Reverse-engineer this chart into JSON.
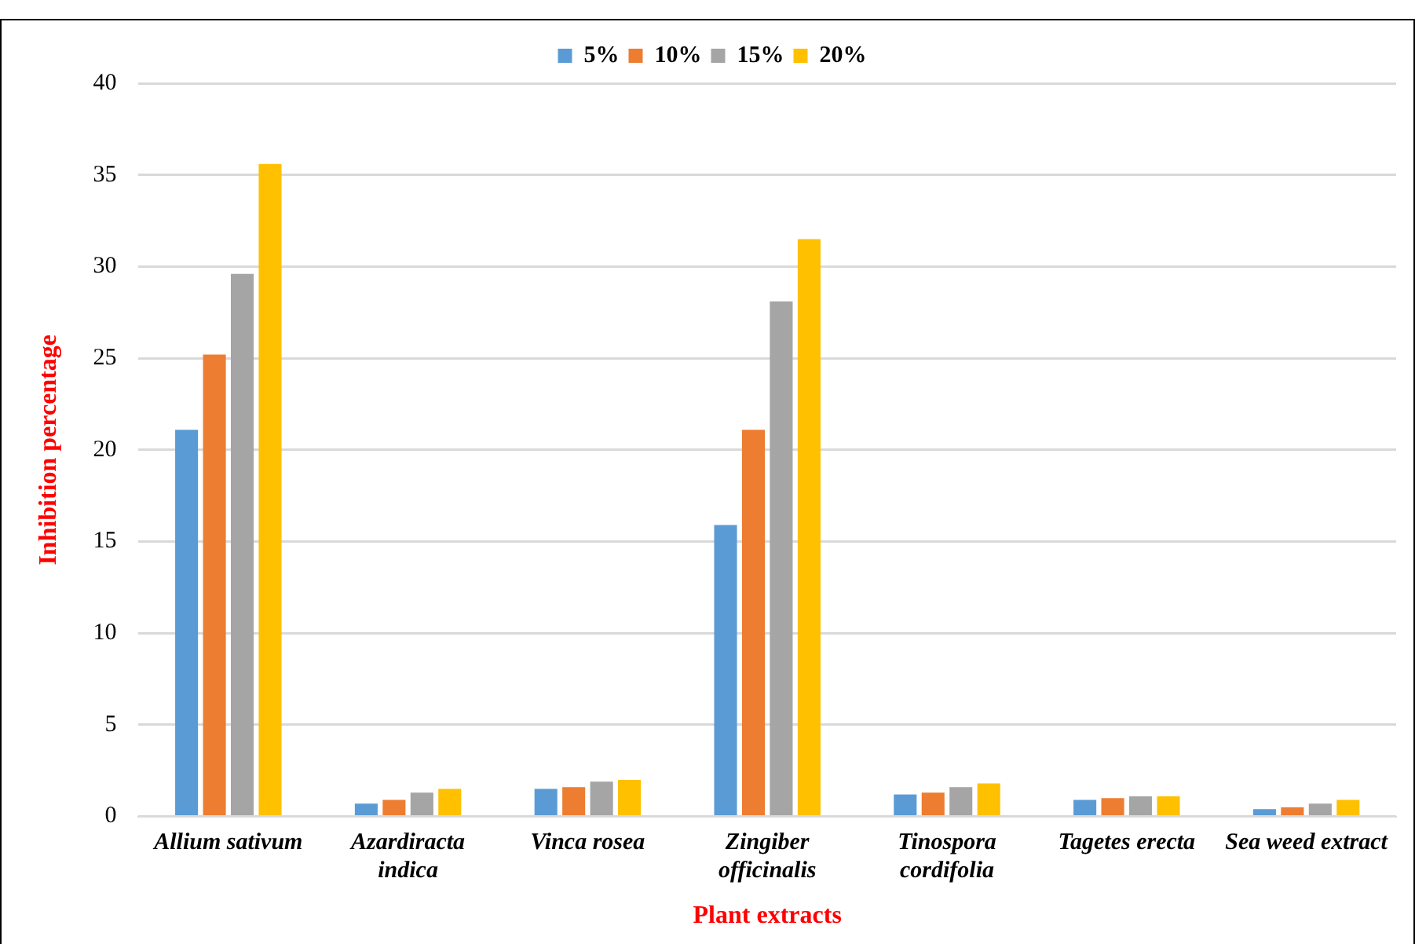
{
  "chart_data": {
    "type": "bar",
    "xlabel": "Plant extracts",
    "ylabel": "Inhibition percentage",
    "categories": [
      "Allium sativum",
      "Azardiracta indica",
      "Vinca rosea",
      "Zingiber officinalis",
      "Tinospora cordifolia",
      "Tagetes erecta",
      "Sea weed extract"
    ],
    "series": [
      {
        "name": "5%",
        "color": "#5b9bd5",
        "values": [
          21.1,
          0.7,
          1.5,
          15.9,
          1.2,
          0.9,
          0.4
        ]
      },
      {
        "name": "10%",
        "color": "#ed7d31",
        "values": [
          25.2,
          0.9,
          1.6,
          21.1,
          1.3,
          1.0,
          0.5
        ]
      },
      {
        "name": "15%",
        "color": "#a5a5a5",
        "values": [
          29.6,
          1.3,
          1.9,
          28.1,
          1.6,
          1.1,
          0.7
        ]
      },
      {
        "name": "20%",
        "color": "#ffc000",
        "values": [
          35.6,
          1.5,
          2.0,
          31.5,
          1.8,
          1.1,
          0.9
        ]
      }
    ],
    "ylim": [
      0,
      40
    ],
    "yticks": [
      0,
      5,
      10,
      15,
      20,
      25,
      30,
      35,
      40
    ],
    "grid": "y",
    "legend": "top"
  }
}
